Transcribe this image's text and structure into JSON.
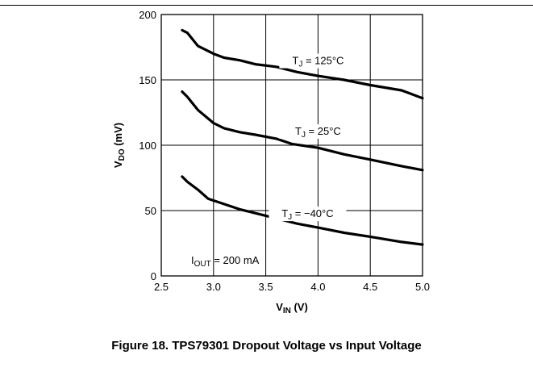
{
  "caption": "Figure 18. TPS79301 Dropout Voltage vs Input Voltage",
  "chart_data": {
    "type": "line",
    "xlabel": {
      "main": "V",
      "sub": "IN",
      "unit": " (V)"
    },
    "ylabel": {
      "main": "V",
      "sub": "DO",
      "unit": " (mV)"
    },
    "xlim": [
      2.5,
      5.0
    ],
    "ylim": [
      0,
      200
    ],
    "xticks": [
      "2.5",
      "3.0",
      "3.5",
      "4.0",
      "4.5",
      "5.0"
    ],
    "yticks": [
      "0",
      "50",
      "100",
      "150",
      "200"
    ],
    "grid": true,
    "annotation": {
      "main": "I",
      "sub": "OUT",
      "rest": " = 200 mA"
    },
    "series": [
      {
        "label": {
          "main": "T",
          "sub": "J",
          "rest": " = 125°C"
        },
        "x": [
          2.7,
          2.75,
          2.85,
          3.0,
          3.1,
          3.25,
          3.4,
          3.6,
          3.8,
          4.0,
          4.25,
          4.5,
          4.8,
          5.0
        ],
        "y": [
          188,
          186,
          176,
          170,
          167,
          165,
          162,
          160,
          156,
          153,
          150,
          146,
          142,
          136
        ]
      },
      {
        "label": {
          "main": "T",
          "sub": "J",
          "rest": " = 25°C"
        },
        "x": [
          2.7,
          2.75,
          2.85,
          3.0,
          3.1,
          3.25,
          3.4,
          3.6,
          3.75,
          4.0,
          4.25,
          4.5,
          4.8,
          5.0
        ],
        "y": [
          141,
          137,
          127,
          117,
          113,
          110,
          108,
          105,
          101,
          98,
          93,
          89,
          84,
          81
        ]
      },
      {
        "label": {
          "main": "T",
          "sub": "J",
          "rest": " = −40°C"
        },
        "x": [
          2.7,
          2.75,
          2.85,
          2.95,
          3.1,
          3.25,
          3.4,
          3.6,
          3.8,
          4.0,
          4.25,
          4.5,
          4.8,
          5.0
        ],
        "y": [
          76,
          72,
          66,
          59,
          55,
          51,
          48,
          44,
          40,
          37,
          33,
          30,
          26,
          24
        ]
      }
    ]
  }
}
